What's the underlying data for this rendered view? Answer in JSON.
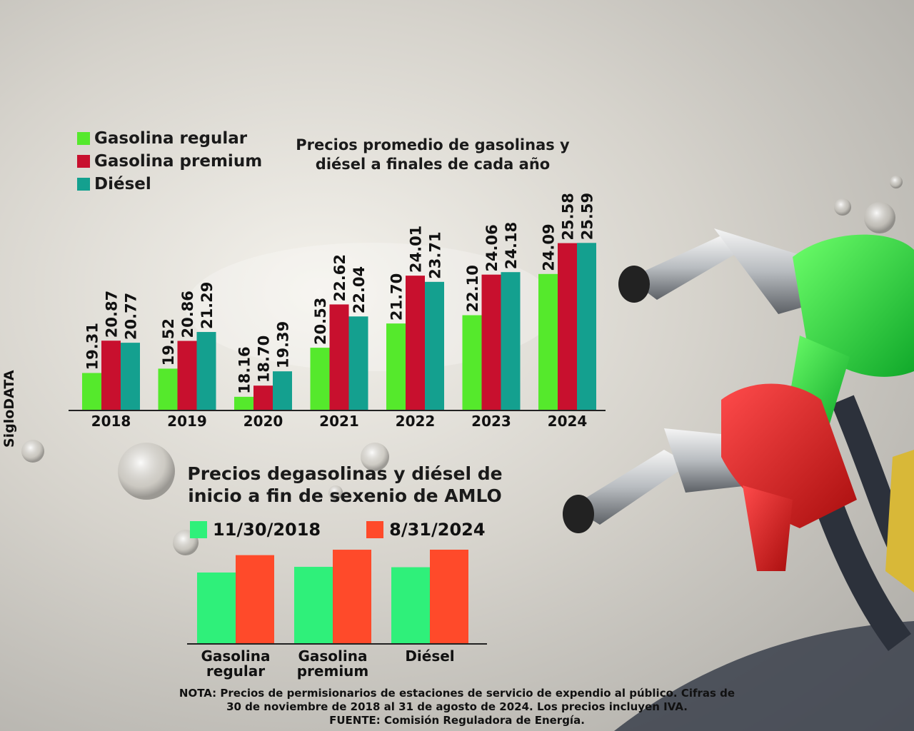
{
  "brand": "SigloDATA",
  "colors": {
    "regular": "#55e92c",
    "premium": "#c8102e",
    "diesel": "#14a08f",
    "start": "#2ff07a",
    "end": "#ff4a2a"
  },
  "chart_data": [
    {
      "type": "bar",
      "title_line1": "Precios promedio de gasolinas y",
      "title_line2": "diésel a finales de cada año",
      "legend_placement": "top-left",
      "categories": [
        "2018",
        "2019",
        "2020",
        "2021",
        "2022",
        "2023",
        "2024"
      ],
      "series": [
        {
          "name": "Gasolina regular",
          "values": [
            19.31,
            19.52,
            18.16,
            20.53,
            21.7,
            22.1,
            24.09
          ]
        },
        {
          "name": "Gasolina premium",
          "values": [
            20.87,
            20.86,
            18.7,
            22.62,
            24.01,
            24.06,
            25.58
          ]
        },
        {
          "name": "Diésel",
          "values": [
            20.77,
            21.29,
            19.39,
            22.04,
            23.71,
            24.18,
            25.59
          ]
        }
      ],
      "labels": [
        [
          "19.31",
          "19.52",
          "18.16",
          "20.53",
          "21.70",
          "22.10",
          "24.09"
        ],
        [
          "20.87",
          "20.86",
          "18.70",
          "22.62",
          "24.01",
          "24.06",
          "25.58"
        ],
        [
          "20.77",
          "21.29",
          "19.39",
          "22.04",
          "23.71",
          "24.18",
          "25.59"
        ]
      ],
      "ylim": [
        17.5,
        25.6
      ],
      "grid": false
    },
    {
      "type": "bar",
      "title_line1": "Precios degasolinas y diésel de",
      "title_line2": "inicio a fin de sexenio de AMLO",
      "legend_placement": "top",
      "categories": [
        "Gasolina regular",
        "Gasolina premium",
        "Diésel"
      ],
      "category_lines": [
        [
          "Gasolina",
          "regular"
        ],
        [
          "Gasolina",
          "premium"
        ],
        [
          "Diésel"
        ]
      ],
      "series": [
        {
          "name": "11/30/2018",
          "values": [
            19.31,
            20.87,
            20.77
          ]
        },
        {
          "name": "8/31/2024",
          "values": [
            24.09,
            25.58,
            25.59
          ]
        }
      ],
      "ylim": [
        0,
        25.6
      ],
      "grid": false
    }
  ],
  "note": {
    "line1": "NOTA: Precios de permisionarios de estaciones de servicio de expendio al público. Cifras de",
    "line2": "30 de noviembre de 2018 al 31 de agosto de 2024. Los precios incluyen IVA.",
    "line3": "FUENTE: Comisión Reguladora de Energía."
  }
}
